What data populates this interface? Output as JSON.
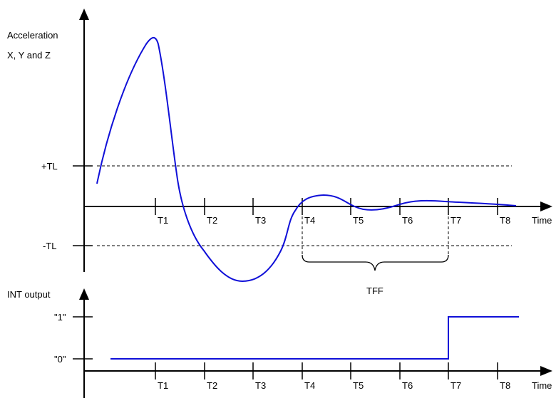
{
  "upper_plot": {
    "y_label_line1": "Acceleration",
    "y_label_line2": "X, Y and Z",
    "x_label": "Time",
    "plus_threshold": "+TL",
    "minus_threshold": "-TL",
    "ticks": [
      "T1",
      "T2",
      "T3",
      "T4",
      "T5",
      "T6",
      "T7",
      "T8"
    ],
    "window_label": "TFF",
    "curve_color": "#1010d8"
  },
  "lower_plot": {
    "y_label": "INT output",
    "x_label": "Time",
    "level_high": "\"1\"",
    "level_low": "\"0\"",
    "ticks": [
      "T1",
      "T2",
      "T3",
      "T4",
      "T5",
      "T6",
      "T7",
      "T8"
    ],
    "signal_color": "#1010d8"
  }
}
